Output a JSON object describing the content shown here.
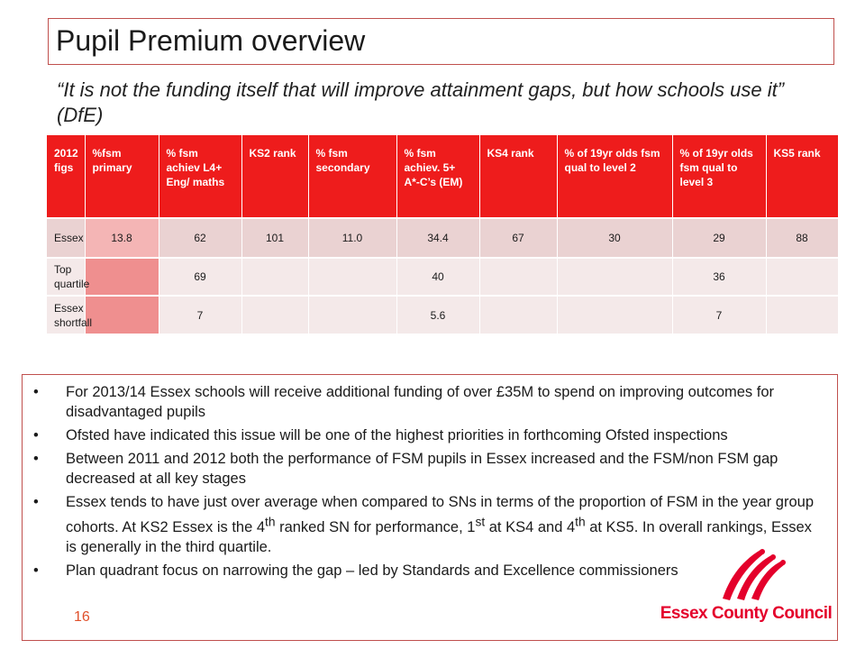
{
  "slide": {
    "title": "Pupil Premium overview",
    "quote": "“It is not the funding itself that will improve attainment gaps, but how schools use it” (DfE)",
    "page_number": "16"
  },
  "table": {
    "headers": [
      "2012 figs",
      "%fsm primary",
      "% fsm achiev L4+ Eng/ maths",
      "KS2 rank",
      "% fsm secondary",
      "% fsm achiev. 5+ A*-C’s (EM)",
      "KS4 rank",
      "% of 19yr olds fsm qual to level 2",
      "% of 19yr olds fsm qual to level 3",
      "KS5 rank"
    ],
    "rows": [
      [
        "Essex",
        "13.8",
        "62",
        "101",
        "11.0",
        "34.4",
        "67",
        "30",
        "29",
        "88"
      ],
      [
        "Top quartile",
        "",
        "69",
        "",
        "",
        "40",
        "",
        "",
        "36",
        ""
      ],
      [
        "Essex shortfall",
        "",
        "7",
        "",
        "",
        "5.6",
        "",
        "",
        "7",
        ""
      ]
    ]
  },
  "bullets": [
    {
      "parts": [
        "For 2013/14  Essex schools will receive additional funding of over £35M to spend on improving outcomes for disadvantaged pupils"
      ]
    },
    {
      "parts": [
        "Ofsted have indicated this issue will be one of the highest priorities in forthcoming Ofsted inspections"
      ]
    },
    {
      "parts": [
        "Between 2011 and 2012 both the performance of FSM pupils in Essex increased and the FSM/non FSM gap decreased at all key stages"
      ]
    },
    {
      "p1": "Essex tends to have just over average when compared to SNs in terms of the proportion of FSM in the year group cohorts. At KS2 Essex is the 4",
      "s1": "th",
      "p2": " ranked SN for performance, 1",
      "s2": "st",
      "p3": " at KS4 and 4",
      "s3": "th",
      "p4": " at KS5. In overall rankings, Essex is generally in the third quartile."
    },
    {
      "parts": [
        "Plan quadrant focus on narrowing the gap – led by Standards and Excellence commissioners"
      ]
    }
  ],
  "bullet_symbol": "•",
  "logo": {
    "text": "Essex County Council",
    "color": "#e4002b"
  },
  "colors": {
    "header_red": "#ee1c1c",
    "accent_border": "#c0504d"
  }
}
